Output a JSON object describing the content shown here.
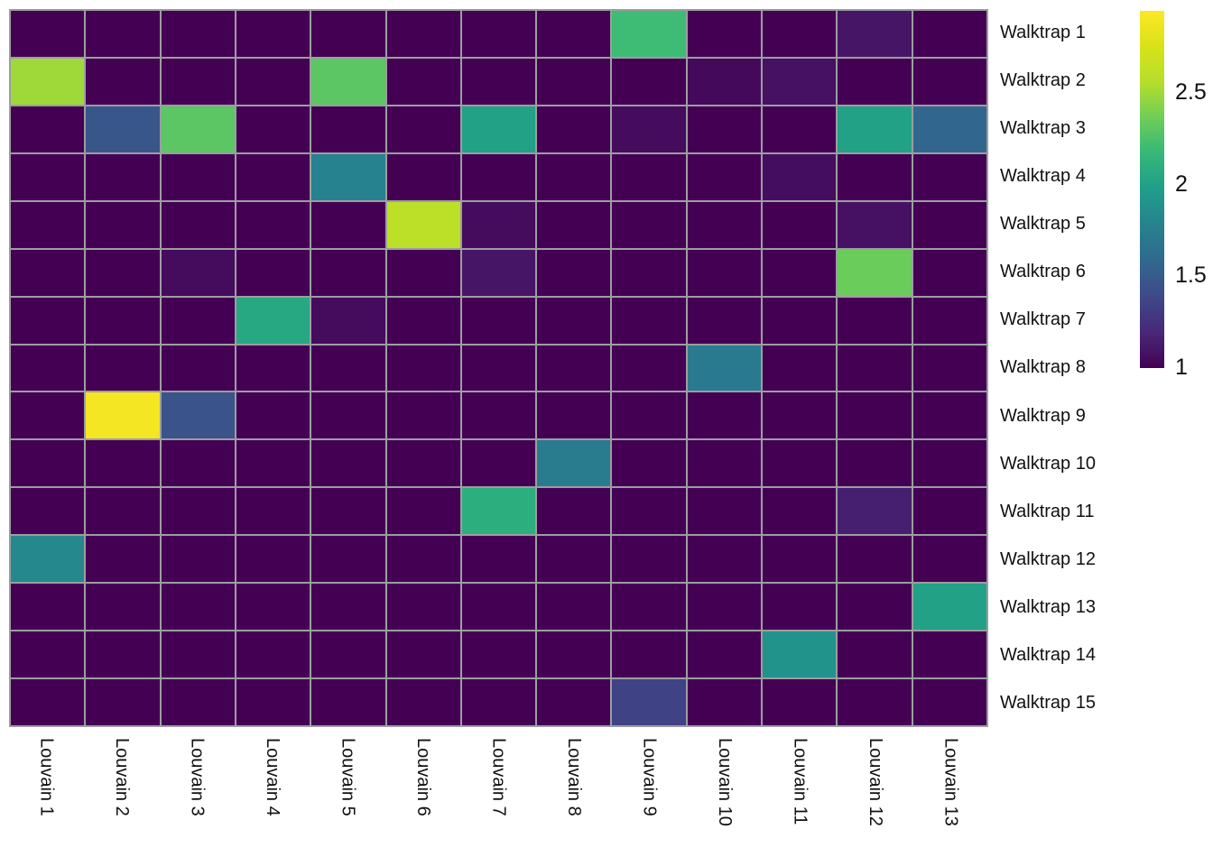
{
  "chart_data": {
    "type": "heatmap",
    "title": "",
    "xlabel": "",
    "ylabel": "",
    "rows": [
      "Walktrap 1",
      "Walktrap 2",
      "Walktrap 3",
      "Walktrap 4",
      "Walktrap 5",
      "Walktrap 6",
      "Walktrap 7",
      "Walktrap 8",
      "Walktrap 9",
      "Walktrap 10",
      "Walktrap 11",
      "Walktrap 12",
      "Walktrap 13",
      "Walktrap 14",
      "Walktrap 15"
    ],
    "columns": [
      "Louvain 1",
      "Louvain 2",
      "Louvain 3",
      "Louvain 4",
      "Louvain 5",
      "Louvain 6",
      "Louvain 7",
      "Louvain 8",
      "Louvain 9",
      "Louvain 10",
      "Louvain 11",
      "Louvain 12",
      "Louvain 13"
    ],
    "values": [
      [
        1,
        1,
        1,
        1,
        1,
        1,
        1,
        1,
        2.2,
        1,
        1,
        1.1,
        1
      ],
      [
        2.5,
        1,
        1,
        1,
        2.3,
        1,
        1,
        1,
        1,
        1.04,
        1.08,
        1,
        1
      ],
      [
        1,
        1.47,
        2.3,
        1,
        1,
        1,
        2.0,
        1,
        1.05,
        1,
        1,
        2.0,
        1.58
      ],
      [
        1,
        1,
        1,
        1,
        1.78,
        1,
        1,
        1,
        1,
        1,
        1.06,
        1,
        1
      ],
      [
        1,
        1,
        1,
        1,
        1,
        2.6,
        1.05,
        1,
        1,
        1,
        1,
        1.08,
        1
      ],
      [
        1,
        1,
        1.05,
        1,
        1,
        1,
        1.1,
        1,
        1,
        1,
        1,
        2.35,
        1
      ],
      [
        1,
        1,
        1,
        2.05,
        1.05,
        1,
        1,
        1,
        1,
        1,
        1,
        1,
        1
      ],
      [
        1,
        1,
        1,
        1,
        1,
        1,
        1,
        1,
        1,
        1.72,
        1,
        1,
        1
      ],
      [
        1,
        2.9,
        1.45,
        1,
        1,
        1,
        1,
        1,
        1,
        1,
        1,
        1,
        1
      ],
      [
        1,
        1,
        1,
        1,
        1,
        1,
        1,
        1.73,
        1,
        1,
        1,
        1,
        1
      ],
      [
        1,
        1,
        1,
        1,
        1,
        1,
        2.1,
        1,
        1,
        1,
        1,
        1.15,
        1
      ],
      [
        1.82,
        1,
        1,
        1,
        1,
        1,
        1,
        1,
        1,
        1,
        1,
        1,
        1
      ],
      [
        1,
        1,
        1,
        1,
        1,
        1,
        1,
        1,
        1,
        1,
        1,
        1,
        2.0
      ],
      [
        1,
        1,
        1,
        1,
        1,
        1,
        1,
        1,
        1,
        1,
        1.9,
        1,
        1
      ],
      [
        1,
        1,
        1,
        1,
        1,
        1,
        1,
        1,
        1.35,
        1,
        1,
        1,
        1
      ]
    ],
    "colorscale": {
      "name": "viridis",
      "domain": [
        1,
        2.95
      ],
      "stops": [
        "#440154",
        "#482878",
        "#3e4989",
        "#31688e",
        "#26828e",
        "#1f9e89",
        "#35b779",
        "#6ece58",
        "#b5de2b",
        "#d8e219",
        "#fde725"
      ]
    },
    "colorbar_ticks": [
      "2.5",
      "2",
      "1.5",
      "1"
    ],
    "colorbar_tick_values": [
      2.5,
      2,
      1.5,
      1
    ],
    "grid_line_color": "#9c9ea0",
    "background": "#ffffff",
    "legend_position": "right",
    "grid": true
  }
}
